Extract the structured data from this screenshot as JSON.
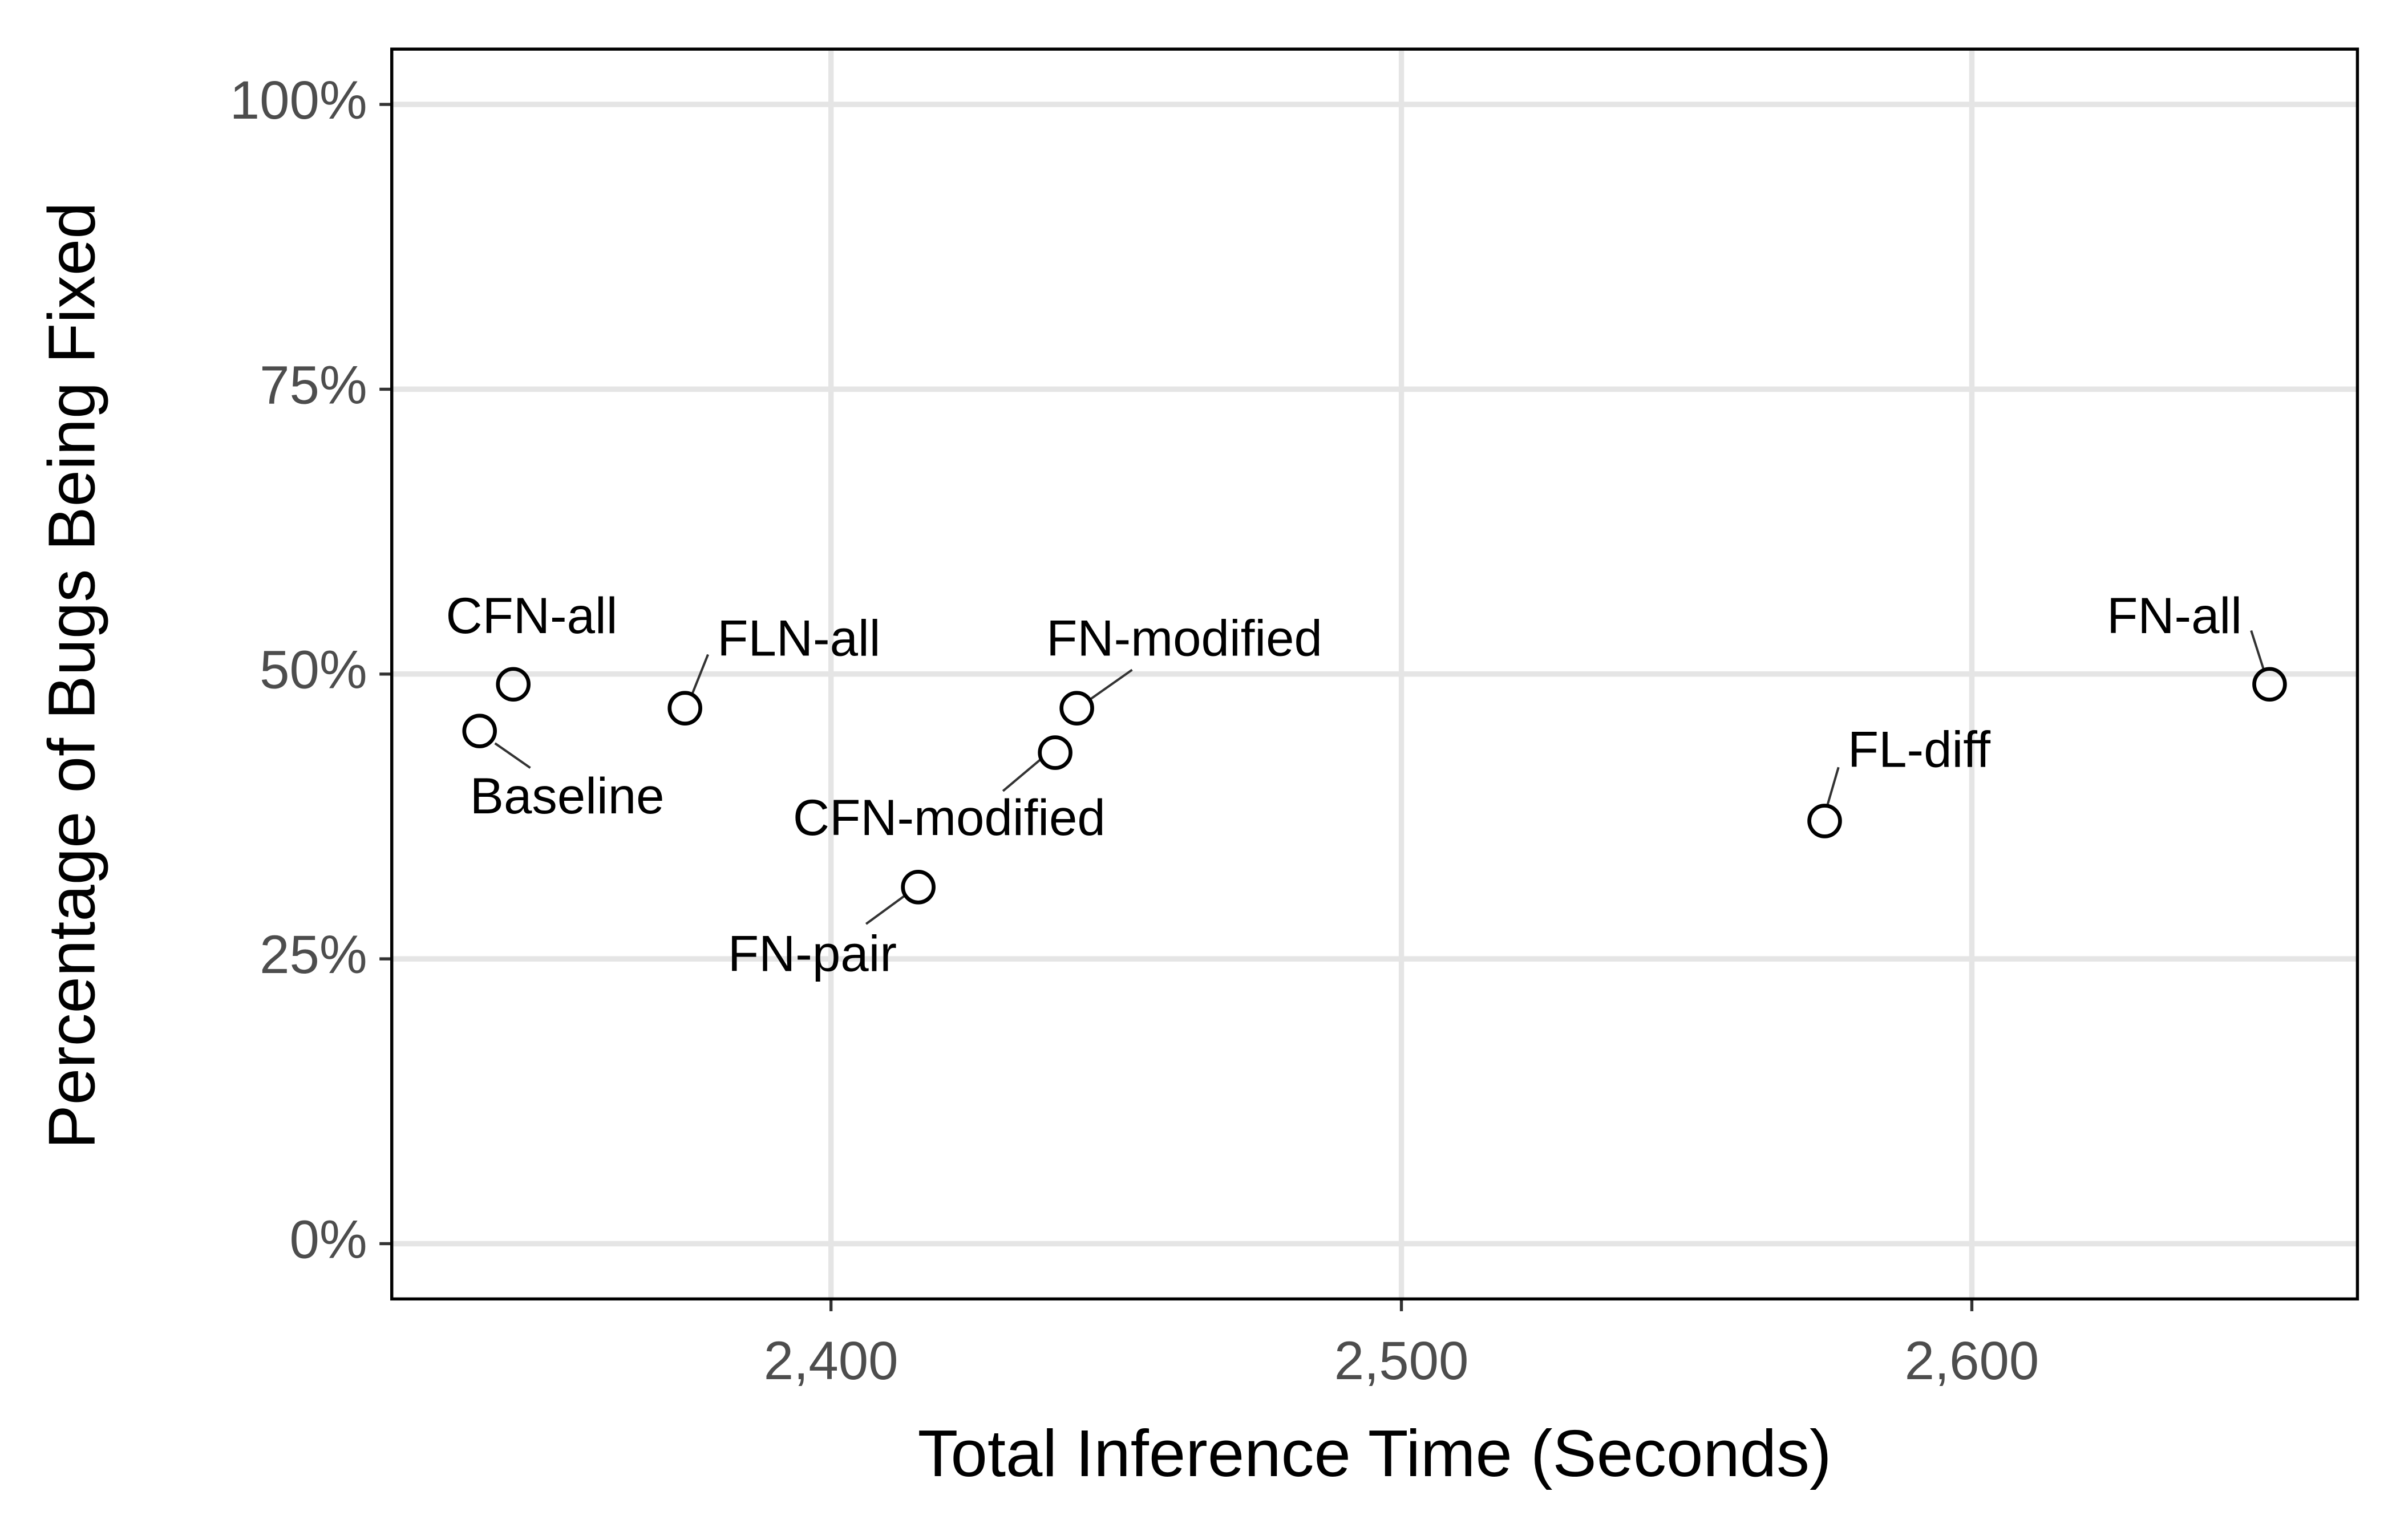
{
  "chart_data": {
    "type": "scatter",
    "x_label": "Total Inference Time (Seconds)",
    "y_label": "Percentage of Bugs Being Fixed",
    "labels": [
      "Baseline",
      "CFN-all",
      "FLN-all",
      "FN-pair",
      "CFN-modified",
      "FN-modified",
      "FL-diff",
      "FN-all"
    ],
    "x": [
      2338.4,
      2344.3,
      2374.4,
      2415.3,
      2439.3,
      2443.1,
      2574.2,
      2652.2
    ],
    "values": [
      45.0,
      49.1,
      47.0,
      31.3,
      43.1,
      47.0,
      37.1,
      49.1
    ],
    "xlim": [
      2323,
      2667.6
    ],
    "ylim": [
      -4.85,
      104.85
    ],
    "xticks": [
      {
        "value": 2400,
        "label": "2,400"
      },
      {
        "value": 2500,
        "label": "2,500"
      },
      {
        "value": 2600,
        "label": "2,600"
      }
    ],
    "yticks": [
      {
        "value": 0,
        "label": "0%"
      },
      {
        "value": 25,
        "label": "25%"
      },
      {
        "value": 50,
        "label": "50%"
      },
      {
        "value": 75,
        "label": "75%"
      },
      {
        "value": 100,
        "label": "100%"
      }
    ],
    "grid": true,
    "color": "#000000"
  }
}
